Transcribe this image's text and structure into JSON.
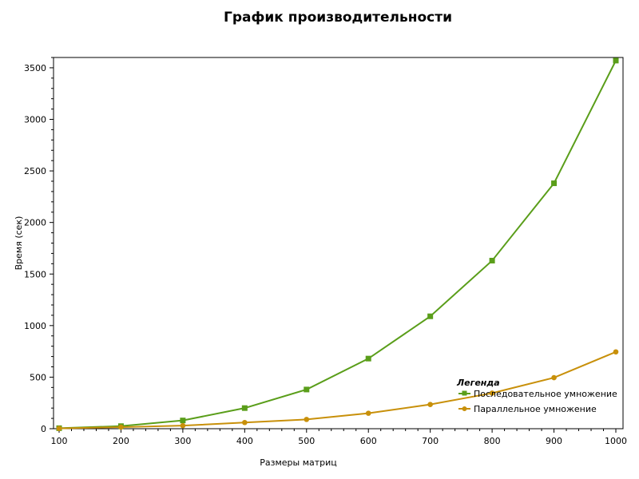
{
  "chart_data": {
    "type": "line",
    "title": "График производительности",
    "xlabel": "Размеры матриц",
    "ylabel": "Время (сек)",
    "x": [
      100,
      200,
      300,
      400,
      500,
      600,
      700,
      800,
      900,
      1000
    ],
    "xlim": [
      100,
      1000
    ],
    "ylim": [
      0,
      3600
    ],
    "yticks": [
      0,
      500,
      1000,
      1500,
      2000,
      2500,
      3000,
      3500
    ],
    "grid": false,
    "legend": {
      "title": "Легенда",
      "position": "bottom-right"
    },
    "series": [
      {
        "name": "Последовательное умножение",
        "color": "#5a9e1a",
        "marker": "square",
        "values": [
          5,
          25,
          80,
          200,
          380,
          680,
          1090,
          1630,
          2380,
          3570
        ]
      },
      {
        "name": "Параллельное умножение",
        "color": "#c8900a",
        "marker": "circle",
        "values": [
          3,
          15,
          30,
          60,
          90,
          150,
          235,
          345,
          495,
          745
        ]
      }
    ]
  }
}
